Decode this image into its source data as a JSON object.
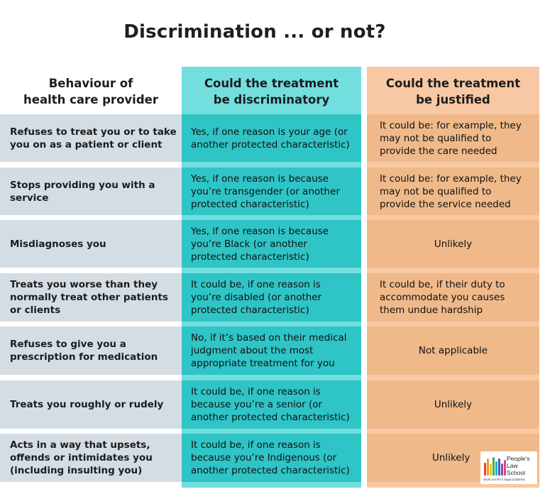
{
  "title": "Discrimination ... or not?",
  "headers": {
    "behaviour": [
      "Behaviour of",
      "health care provider"
    ],
    "discriminatory": [
      "Could the treatment",
      "be discriminatory"
    ],
    "justified": [
      "Could the treatment",
      "be justified"
    ]
  },
  "rows": [
    {
      "behaviour": [
        "Refuses to treat you or to take",
        "you on as a patient or client"
      ],
      "discriminatory": [
        "Yes, if one reason is your age (or",
        "another protected characteristic)"
      ],
      "justified": [
        "It could be: for example, they",
        "may not be qualified to",
        "provide the care needed"
      ]
    },
    {
      "behaviour": [
        "Stops providing you with a",
        "service"
      ],
      "discriminatory": [
        "Yes, if one reason is because",
        "you’re transgender (or another",
        "protected characteristic)"
      ],
      "justified": [
        "It could be: for example, they",
        "may not be qualified to",
        "provide the service needed"
      ]
    },
    {
      "behaviour": [
        "Misdiagnoses you"
      ],
      "discriminatory": [
        "Yes, if one reason is because",
        "you’re Black (or another",
        "protected characteristic)"
      ],
      "justified": [
        "Unlikely"
      ]
    },
    {
      "behaviour": [
        "Treats you worse than they",
        "normally treat other patients",
        "or clients"
      ],
      "discriminatory": [
        "It could be, if one reason is",
        "you’re disabled (or another",
        "protected characteristic)"
      ],
      "justified": [
        "It could be, if their duty to",
        "accommodate you causes",
        "them undue hardship"
      ]
    },
    {
      "behaviour": [
        "Refuses to give you a",
        "prescription for medication"
      ],
      "discriminatory": [
        "No, if it’s based on their medical",
        "judgment about the most",
        "appropriate treatment for you"
      ],
      "justified": [
        "Not applicable"
      ]
    },
    {
      "behaviour": [
        "Treats you roughly or rudely"
      ],
      "discriminatory": [
        "It could be, if one reason is",
        "because you’re a senior (or",
        "another protected characteristic)"
      ],
      "justified": [
        "Unlikely"
      ]
    },
    {
      "behaviour": [
        "Acts in a way that upsets,",
        "offends or intimidates you",
        "(including insulting you)"
      ],
      "discriminatory": [
        "It could be, if one reason is",
        "because you’re Indigenous (or",
        "another protected characteristic)"
      ],
      "justified": [
        "Unlikely"
      ]
    }
  ],
  "logo": {
    "name": [
      "People’s",
      "Law",
      "School"
    ],
    "tagline": "Work out life’s legal problems",
    "colors": [
      "#e8403a",
      "#f39a1e",
      "#f5c518",
      "#3bb54a",
      "#2ea8d8",
      "#3a62b8",
      "#8e44ad",
      "#e0457b"
    ]
  },
  "colors": {
    "teal_column": "#72dede",
    "teal_cell": "#2fc4c6",
    "orange_column": "#f7c8a3",
    "orange_cell": "#efb98a",
    "grey_cell": "#d5dde4"
  }
}
